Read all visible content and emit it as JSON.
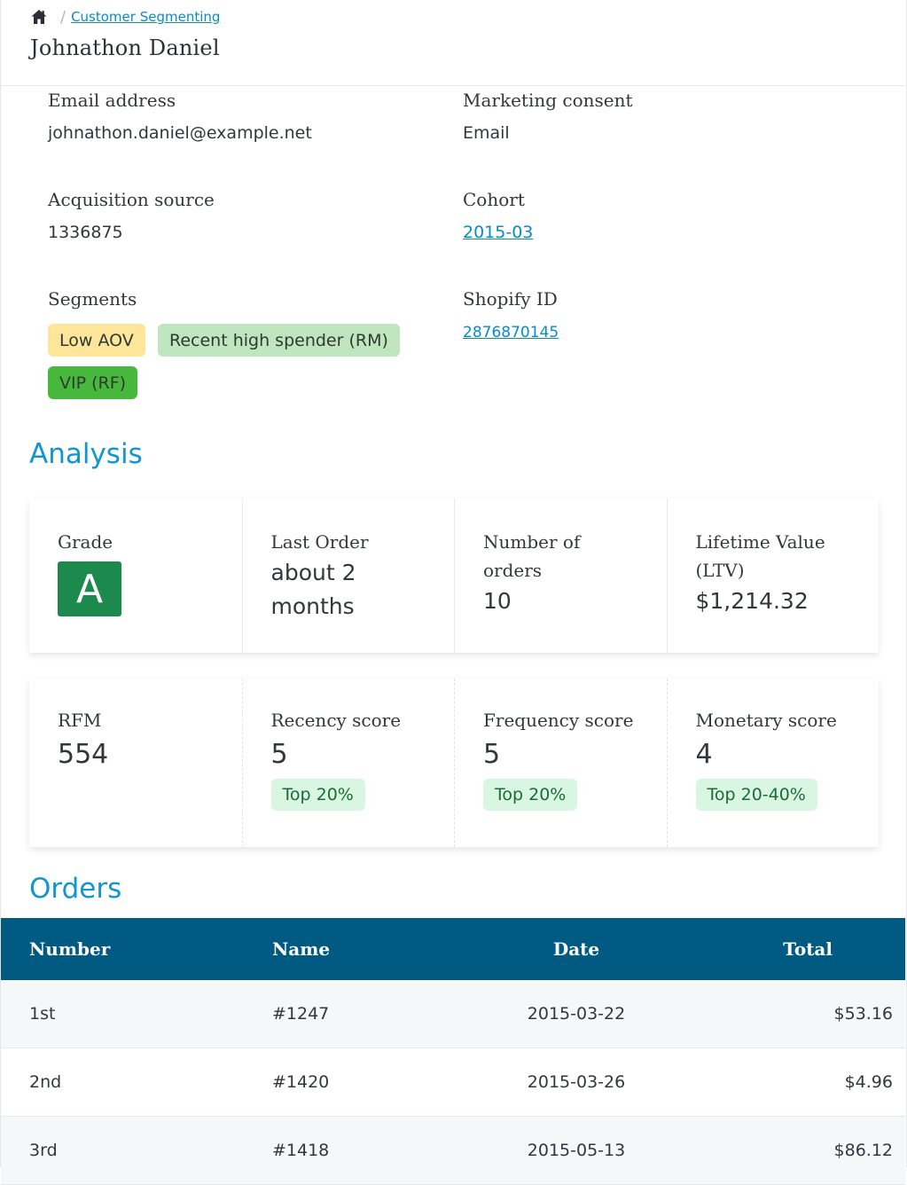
{
  "breadcrumb": {
    "link": "Customer Segmenting"
  },
  "customer": {
    "name": "Johnathon Daniel"
  },
  "details": {
    "email_label": "Email address",
    "email_value": "johnathon.daniel@example.net",
    "consent_label": "Marketing consent",
    "consent_value": "Email",
    "acq_label": "Acquisition source",
    "acq_value": "1336875",
    "cohort_label": "Cohort",
    "cohort_value": "2015-03",
    "segments_label": "Segments",
    "shopify_label": "Shopify ID",
    "shopify_value": "2876870145"
  },
  "segments": [
    {
      "label": "Low AOV",
      "color": "#fde69a"
    },
    {
      "label": "Recent high spender (RM)",
      "color": "#bfe6bf"
    },
    {
      "label": "VIP (RF)",
      "color": "#46b83c"
    }
  ],
  "analysis": {
    "title": "Analysis",
    "grade_label": "Grade",
    "grade_value": "A",
    "last_order_label": "Last Order",
    "last_order_line1": "about 2",
    "last_order_line2": "months",
    "orders_label_line1": "Number of",
    "orders_label_line2": "orders",
    "orders_value": "10",
    "ltv_label_line1": "Lifetime Value",
    "ltv_label_line2": "(LTV)",
    "ltv_value": "$1,214.32"
  },
  "rfm": {
    "rfm_label": "RFM",
    "rfm_value": "554",
    "recency_label": "Recency score",
    "recency_value": "5",
    "recency_badge": "Top 20%",
    "frequency_label": "Frequency score",
    "frequency_value": "5",
    "frequency_badge": "Top 20%",
    "monetary_label": "Monetary score",
    "monetary_value": "4",
    "monetary_badge": "Top 20-40%"
  },
  "orders": {
    "title": "Orders",
    "headers": {
      "number": "Number",
      "name": "Name",
      "date": "Date",
      "total": "Total"
    },
    "rows": [
      {
        "number": "1st",
        "name": "#1247",
        "date": "2015-03-22",
        "total": "$53.16"
      },
      {
        "number": "2nd",
        "name": "#1420",
        "date": "2015-03-26",
        "total": "$4.96"
      },
      {
        "number": "3rd",
        "name": "#1418",
        "date": "2015-05-13",
        "total": "$86.12"
      }
    ]
  }
}
